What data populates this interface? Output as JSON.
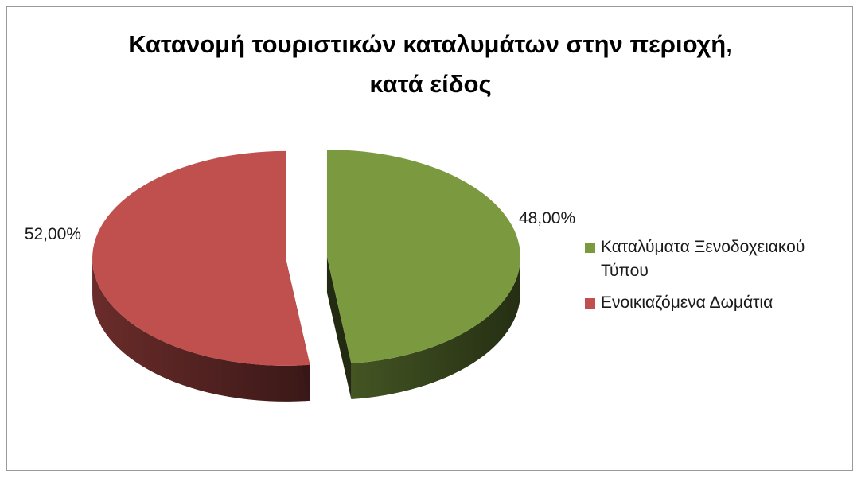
{
  "chart_data": {
    "type": "pie",
    "title_lines": [
      "Κατανομή τουριστικών καταλυμάτων στην περιοχή,",
      "κατά είδος"
    ],
    "slices": [
      {
        "name": "Καταλύματα Ξενοδοχειακού Τύπου",
        "value": 48,
        "label": "48,00%",
        "color": "#7b9a3f",
        "legend_lines": [
          "Καταλύματα Ξενοδοχειακού",
          "Τύπου"
        ]
      },
      {
        "name": "Ενοικιαζόμενα Δωμάτια",
        "value": 52,
        "label": "52,00%",
        "color": "#c0504d",
        "legend_lines": [
          "Ενοικιαζόμενα Δωμάτια"
        ]
      }
    ],
    "style": "3d-exploded",
    "legend_position": "right"
  }
}
